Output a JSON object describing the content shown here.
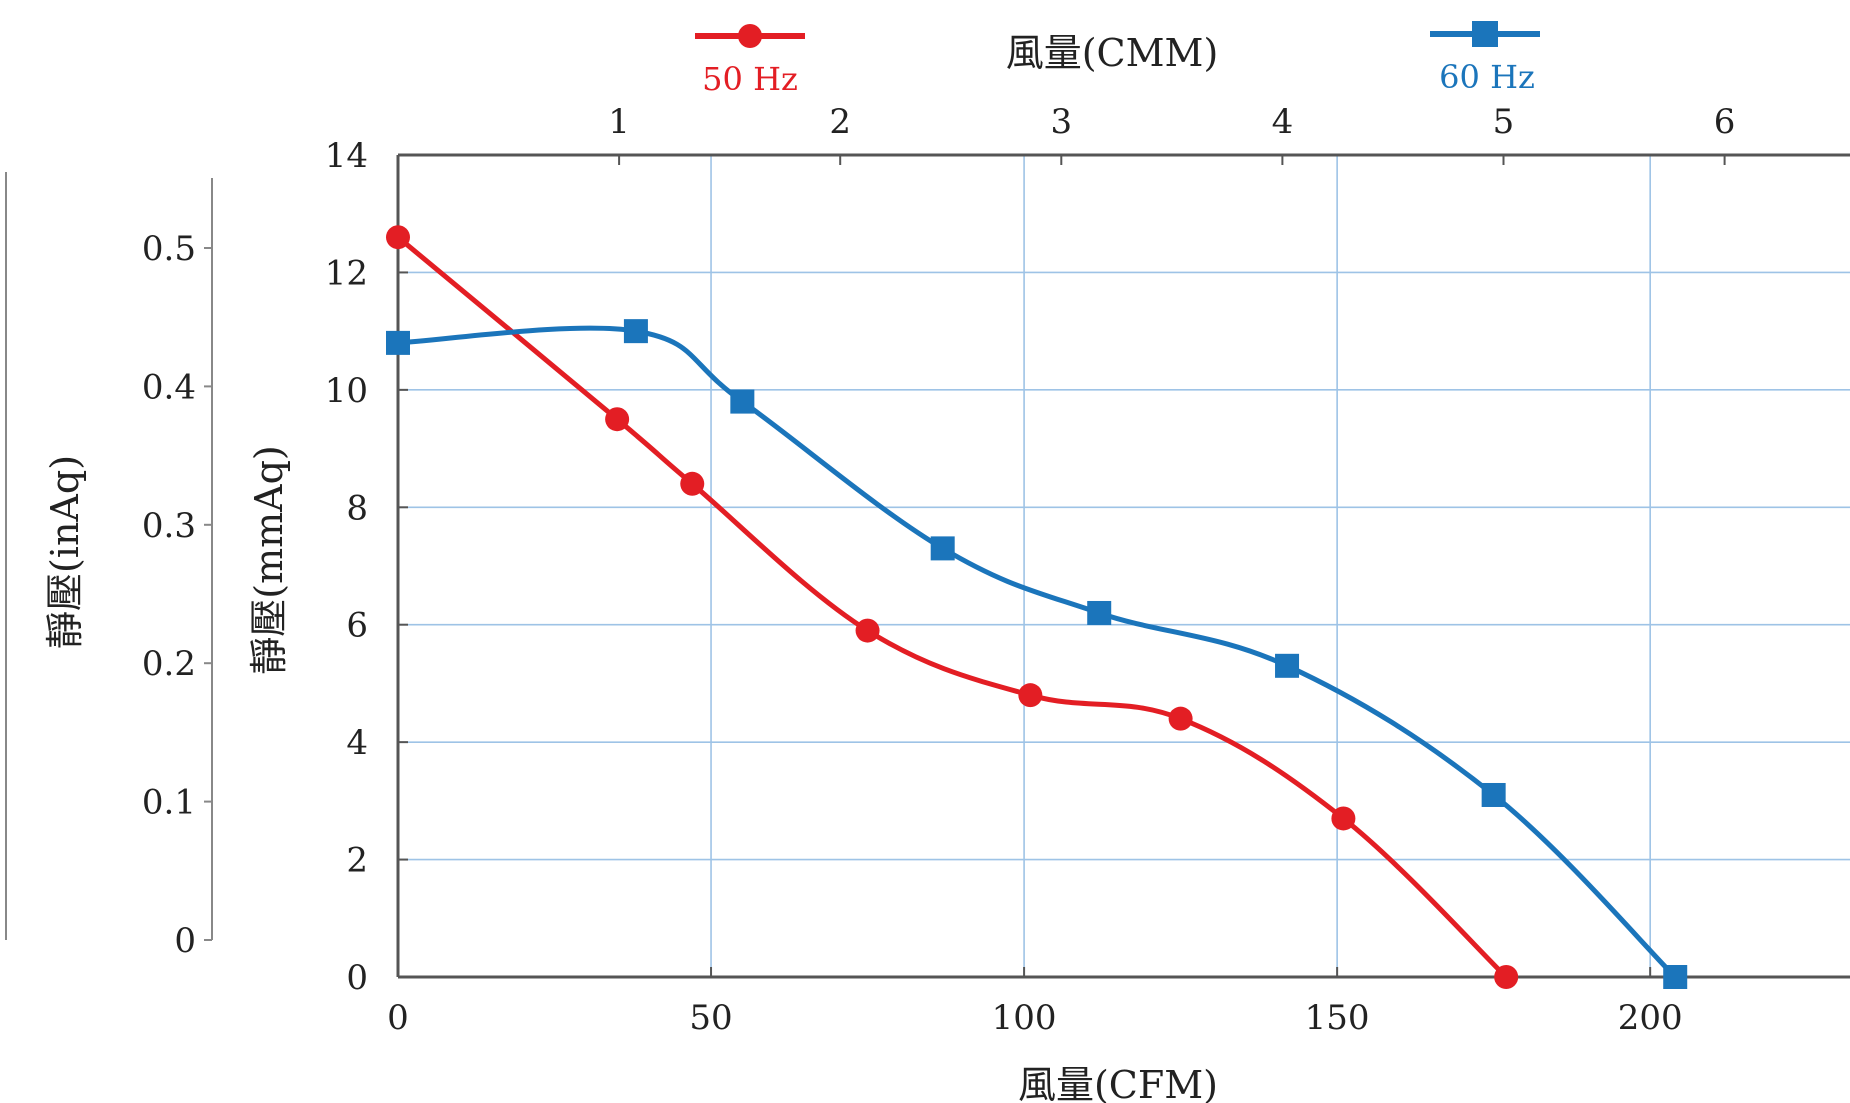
{
  "chart_data": {
    "type": "line",
    "title": "",
    "xlabel": "風量(CFM)",
    "x2label": "風量(CMM)",
    "ylabel": "靜壓(mmAq)",
    "y2label": "靜壓(inAq)",
    "xlim": [
      0,
      230
    ],
    "ylim": [
      0,
      14
    ],
    "x_ticks": [
      "0",
      "50",
      "100",
      "150",
      "200"
    ],
    "x_tick_values": [
      0,
      50,
      100,
      150,
      200
    ],
    "y_ticks": [
      "0",
      "2",
      "4",
      "6",
      "8",
      "10",
      "12",
      "14"
    ],
    "y_tick_values": [
      0,
      2,
      4,
      6,
      8,
      10,
      12,
      14
    ],
    "x2_ticks": [
      "1",
      "2",
      "3",
      "4",
      "5",
      "6"
    ],
    "x2_tick_values": [
      1,
      2,
      3,
      4,
      5,
      6
    ],
    "x2_per_x": 0.028317,
    "y2_ticks": [
      "0",
      "0.1",
      "0.2",
      "0.3",
      "0.4",
      "0.5"
    ],
    "y2_tick_values": [
      0,
      0.1,
      0.2,
      0.3,
      0.4,
      0.5
    ],
    "y2_per_y": 0.03937,
    "grid": true,
    "legend_position": "top",
    "series": [
      {
        "name": "50 Hz",
        "color": "#e31e24",
        "marker": "circle",
        "x": [
          0,
          35,
          47,
          75,
          101,
          125,
          151,
          177
        ],
        "y": [
          12.6,
          9.5,
          8.4,
          5.9,
          4.8,
          4.4,
          2.7,
          0
        ]
      },
      {
        "name": "60 Hz",
        "color": "#1b75bb",
        "marker": "square",
        "x": [
          0,
          38,
          55,
          87,
          112,
          142,
          175,
          204
        ],
        "y": [
          10.8,
          11.0,
          9.8,
          7.3,
          6.2,
          5.3,
          3.1,
          0
        ]
      }
    ]
  }
}
